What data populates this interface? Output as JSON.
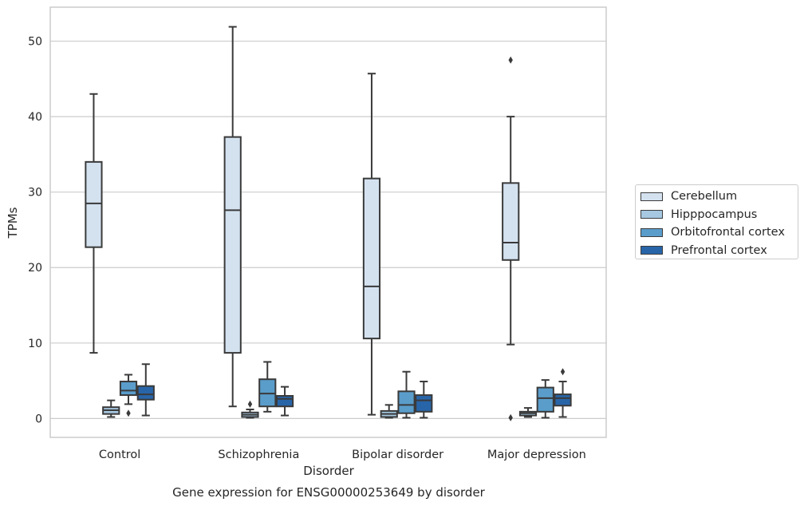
{
  "chart_data": {
    "type": "box",
    "title": "Gene expression for ENSG00000253649 by disorder",
    "xlabel": "Disorder",
    "ylabel": "TPMs",
    "ylim": [
      -2.5,
      54.5
    ],
    "yticks": [
      0,
      10,
      20,
      30,
      40,
      50
    ],
    "grid": true,
    "legend_position": "right",
    "categories": [
      "Control",
      "Schizophrenia",
      "Bipolar disorder",
      "Major depression"
    ],
    "series": [
      {
        "name": "Cerebellum",
        "color": "#d4e2f0",
        "boxes": [
          {
            "min": 8.7,
            "q1": 22.7,
            "median": 28.5,
            "q3": 34.0,
            "max": 43.0,
            "outliers": []
          },
          {
            "min": 1.6,
            "q1": 8.7,
            "median": 27.6,
            "q3": 37.3,
            "max": 51.9,
            "outliers": []
          },
          {
            "min": 0.5,
            "q1": 10.6,
            "median": 17.5,
            "q3": 31.8,
            "max": 45.7,
            "outliers": []
          },
          {
            "min": 9.8,
            "q1": 21.0,
            "median": 23.3,
            "q3": 31.2,
            "max": 40.0,
            "outliers": [
              47.5,
              0.1
            ]
          }
        ]
      },
      {
        "name": "Hipppocampus",
        "color": "#a6c8e0",
        "boxes": [
          {
            "min": 0.2,
            "q1": 0.6,
            "median": 1.1,
            "q3": 1.5,
            "max": 2.4,
            "outliers": []
          },
          {
            "min": 0.1,
            "q1": 0.2,
            "median": 0.5,
            "q3": 0.8,
            "max": 1.2,
            "outliers": [
              1.9
            ]
          },
          {
            "min": 0.1,
            "q1": 0.2,
            "median": 0.6,
            "q3": 1.0,
            "max": 1.8,
            "outliers": []
          },
          {
            "min": 0.2,
            "q1": 0.4,
            "median": 0.7,
            "q3": 0.9,
            "max": 1.4,
            "outliers": []
          }
        ]
      },
      {
        "name": "Orbitofrontal cortex",
        "color": "#5a9dcb",
        "boxes": [
          {
            "min": 1.9,
            "q1": 3.1,
            "median": 3.7,
            "q3": 4.9,
            "max": 5.8,
            "outliers": [
              0.7
            ]
          },
          {
            "min": 0.9,
            "q1": 1.6,
            "median": 3.3,
            "q3": 5.2,
            "max": 7.5,
            "outliers": []
          },
          {
            "min": 0.1,
            "q1": 0.7,
            "median": 1.8,
            "q3": 3.6,
            "max": 6.2,
            "outliers": []
          },
          {
            "min": 0.1,
            "q1": 0.9,
            "median": 2.7,
            "q3": 4.1,
            "max": 5.1,
            "outliers": []
          }
        ]
      },
      {
        "name": "Prefrontal cortex",
        "color": "#2865a8",
        "boxes": [
          {
            "min": 0.4,
            "q1": 2.5,
            "median": 3.2,
            "q3": 4.3,
            "max": 7.2,
            "outliers": []
          },
          {
            "min": 0.4,
            "q1": 1.6,
            "median": 2.6,
            "q3": 3.0,
            "max": 4.2,
            "outliers": []
          },
          {
            "min": 0.1,
            "q1": 0.9,
            "median": 2.4,
            "q3": 3.1,
            "max": 4.9,
            "outliers": []
          },
          {
            "min": 0.2,
            "q1": 1.7,
            "median": 2.7,
            "q3": 3.2,
            "max": 4.9,
            "outliers": [
              6.2
            ]
          }
        ]
      }
    ]
  }
}
